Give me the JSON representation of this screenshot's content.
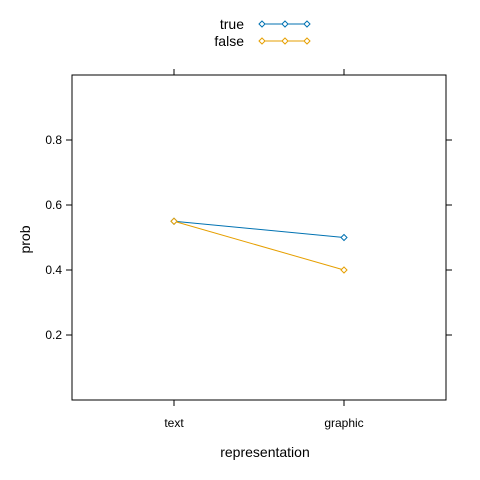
{
  "chart_data": {
    "type": "line",
    "categories": [
      "text",
      "graphic"
    ],
    "xlabel": "representation",
    "ylabel": "prob",
    "ylim": [
      0,
      1
    ],
    "yticks": [
      0.2,
      0.4,
      0.6,
      0.8
    ],
    "ytick_labels": [
      "0.2",
      "0.4",
      "0.6",
      "0.8"
    ],
    "grid": false,
    "legend": "top-center",
    "series": [
      {
        "name": "true",
        "values": [
          0.55,
          0.5
        ],
        "color": "#0072B2",
        "marker": "diamond-open"
      },
      {
        "name": "false",
        "values": [
          0.55,
          0.4
        ],
        "color": "#E69F00",
        "marker": "diamond-open"
      }
    ]
  }
}
